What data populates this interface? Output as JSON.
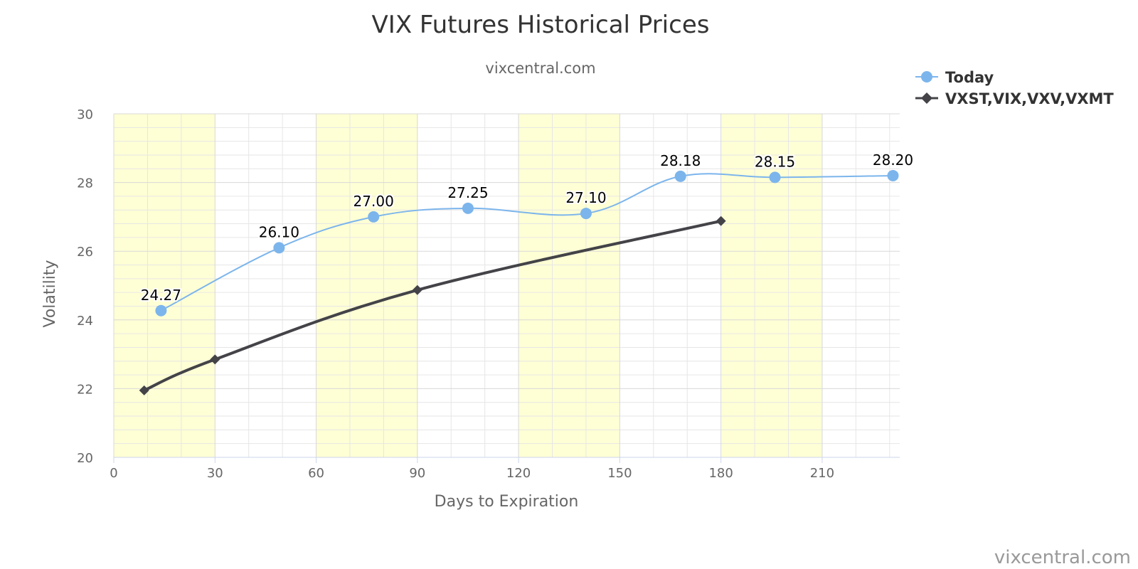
{
  "chart_data": {
    "type": "line",
    "title": "VIX Futures Historical Prices",
    "subtitle": "vixcentral.com",
    "xlabel": "Days to Expiration",
    "ylabel": "Volatility",
    "xlim": [
      0,
      233
    ],
    "ylim": [
      20,
      30
    ],
    "x_ticks": [
      0,
      30,
      60,
      90,
      120,
      150,
      180,
      210
    ],
    "y_ticks": [
      20,
      22,
      24,
      26,
      28,
      30
    ],
    "x_minor_step": 10,
    "y_minor_step": 0.4,
    "bands": [
      [
        0,
        30
      ],
      [
        60,
        90
      ],
      [
        120,
        150
      ],
      [
        180,
        210
      ]
    ],
    "band_color": "#ffffd5",
    "grid": true,
    "legend_position": "top-right",
    "series": [
      {
        "name": "Today",
        "color": "#7cb5ec",
        "marker": "circle",
        "smooth": true,
        "show_labels": true,
        "points": [
          {
            "x": 14,
            "y": 24.27,
            "label": "24.27"
          },
          {
            "x": 49,
            "y": 26.1,
            "label": "26.10"
          },
          {
            "x": 77,
            "y": 27.0,
            "label": "27.00"
          },
          {
            "x": 105,
            "y": 27.25,
            "label": "27.25"
          },
          {
            "x": 140,
            "y": 27.1,
            "label": "27.10"
          },
          {
            "x": 168,
            "y": 28.18,
            "label": "28.18"
          },
          {
            "x": 196,
            "y": 28.15,
            "label": "28.15"
          },
          {
            "x": 231,
            "y": 28.2,
            "label": "28.20"
          }
        ]
      },
      {
        "name": "VXST,VIX,VXV,VXMT",
        "color": "#434348",
        "marker": "diamond",
        "smooth": true,
        "show_labels": false,
        "points": [
          {
            "x": 9,
            "y": 21.95
          },
          {
            "x": 30,
            "y": 22.85
          },
          {
            "x": 90,
            "y": 24.87
          },
          {
            "x": 180,
            "y": 26.88
          }
        ]
      }
    ],
    "credit": "vixcentral.com"
  }
}
